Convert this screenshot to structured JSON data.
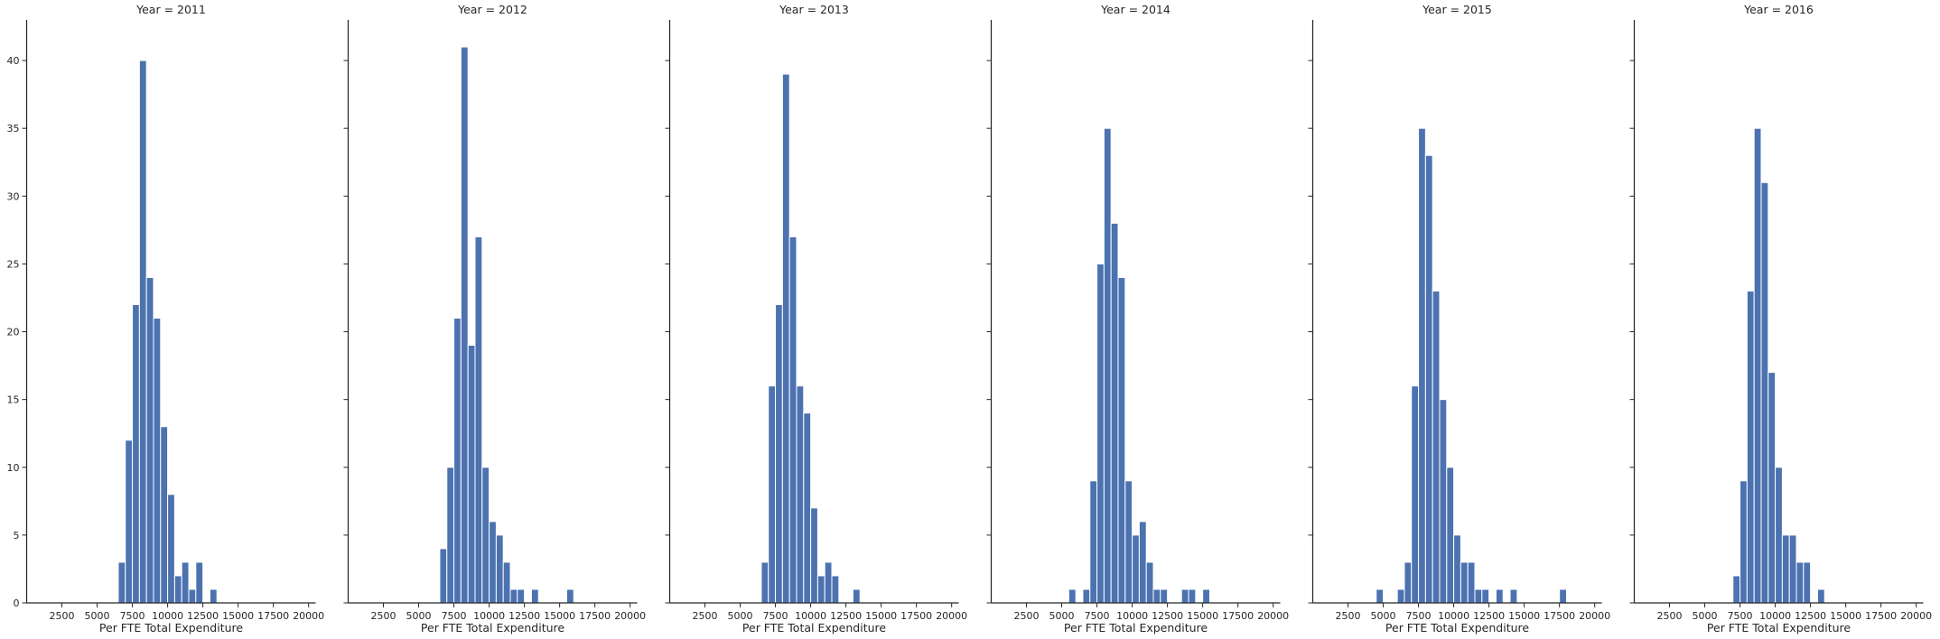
{
  "chart_data": [
    {
      "type": "bar",
      "title": "Year = 2011",
      "xlabel": "Per FTE Total Expenditure",
      "ylabel": "",
      "xlim": [
        0,
        20500
      ],
      "ylim": [
        0,
        43
      ],
      "xticks": [
        2500,
        5000,
        7500,
        10000,
        12500,
        15000,
        17500,
        20000
      ],
      "yticks": [
        0,
        5,
        10,
        15,
        20,
        25,
        30,
        35,
        40
      ],
      "bin_width": 500,
      "bins": [
        {
          "x": 6750,
          "count": 3
        },
        {
          "x": 7250,
          "count": 12
        },
        {
          "x": 7750,
          "count": 22
        },
        {
          "x": 8250,
          "count": 40
        },
        {
          "x": 8750,
          "count": 24
        },
        {
          "x": 9250,
          "count": 21
        },
        {
          "x": 9750,
          "count": 13
        },
        {
          "x": 10250,
          "count": 8
        },
        {
          "x": 10750,
          "count": 2
        },
        {
          "x": 11250,
          "count": 3
        },
        {
          "x": 11750,
          "count": 1
        },
        {
          "x": 12250,
          "count": 3
        },
        {
          "x": 13250,
          "count": 1
        }
      ]
    },
    {
      "type": "bar",
      "title": "Year = 2012",
      "xlabel": "Per FTE Total Expenditure",
      "ylabel": "",
      "xlim": [
        0,
        20500
      ],
      "ylim": [
        0,
        43
      ],
      "xticks": [
        2500,
        5000,
        7500,
        10000,
        12500,
        15000,
        17500,
        20000
      ],
      "yticks": [
        0,
        5,
        10,
        15,
        20,
        25,
        30,
        35,
        40
      ],
      "bin_width": 500,
      "bins": [
        {
          "x": 6750,
          "count": 4
        },
        {
          "x": 7250,
          "count": 10
        },
        {
          "x": 7750,
          "count": 21
        },
        {
          "x": 8250,
          "count": 41
        },
        {
          "x": 8750,
          "count": 19
        },
        {
          "x": 9250,
          "count": 27
        },
        {
          "x": 9750,
          "count": 10
        },
        {
          "x": 10250,
          "count": 6
        },
        {
          "x": 10750,
          "count": 5
        },
        {
          "x": 11250,
          "count": 3
        },
        {
          "x": 11750,
          "count": 1
        },
        {
          "x": 12250,
          "count": 1
        },
        {
          "x": 13250,
          "count": 1
        },
        {
          "x": 15750,
          "count": 1
        }
      ]
    },
    {
      "type": "bar",
      "title": "Year = 2013",
      "xlabel": "Per FTE Total Expenditure",
      "ylabel": "",
      "xlim": [
        0,
        20500
      ],
      "ylim": [
        0,
        43
      ],
      "xticks": [
        2500,
        5000,
        7500,
        10000,
        12500,
        15000,
        17500,
        20000
      ],
      "yticks": [
        0,
        5,
        10,
        15,
        20,
        25,
        30,
        35,
        40
      ],
      "bin_width": 500,
      "bins": [
        {
          "x": 6750,
          "count": 3
        },
        {
          "x": 7250,
          "count": 16
        },
        {
          "x": 7750,
          "count": 22
        },
        {
          "x": 8250,
          "count": 39
        },
        {
          "x": 8750,
          "count": 27
        },
        {
          "x": 9250,
          "count": 16
        },
        {
          "x": 9750,
          "count": 14
        },
        {
          "x": 10250,
          "count": 7
        },
        {
          "x": 10750,
          "count": 2
        },
        {
          "x": 11250,
          "count": 3
        },
        {
          "x": 11750,
          "count": 2
        },
        {
          "x": 13250,
          "count": 1
        }
      ]
    },
    {
      "type": "bar",
      "title": "Year = 2014",
      "xlabel": "Per FTE Total Expenditure",
      "ylabel": "",
      "xlim": [
        0,
        20500
      ],
      "ylim": [
        0,
        43
      ],
      "xticks": [
        2500,
        5000,
        7500,
        10000,
        12500,
        15000,
        17500,
        20000
      ],
      "yticks": [
        0,
        5,
        10,
        15,
        20,
        25,
        30,
        35,
        40
      ],
      "bin_width": 500,
      "bins": [
        {
          "x": 5750,
          "count": 1
        },
        {
          "x": 6750,
          "count": 1
        },
        {
          "x": 7250,
          "count": 9
        },
        {
          "x": 7750,
          "count": 25
        },
        {
          "x": 8250,
          "count": 35
        },
        {
          "x": 8750,
          "count": 28
        },
        {
          "x": 9250,
          "count": 24
        },
        {
          "x": 9750,
          "count": 9
        },
        {
          "x": 10250,
          "count": 5
        },
        {
          "x": 10750,
          "count": 6
        },
        {
          "x": 11250,
          "count": 3
        },
        {
          "x": 11750,
          "count": 1
        },
        {
          "x": 12250,
          "count": 1
        },
        {
          "x": 13750,
          "count": 1
        },
        {
          "x": 14250,
          "count": 1
        },
        {
          "x": 15250,
          "count": 1
        }
      ]
    },
    {
      "type": "bar",
      "title": "Year = 2015",
      "xlabel": "Per FTE Total Expenditure",
      "ylabel": "",
      "xlim": [
        0,
        20500
      ],
      "ylim": [
        0,
        43
      ],
      "xticks": [
        2500,
        5000,
        7500,
        10000,
        12500,
        15000,
        17500,
        20000
      ],
      "yticks": [
        0,
        5,
        10,
        15,
        20,
        25,
        30,
        35,
        40
      ],
      "bin_width": 500,
      "bins": [
        {
          "x": 4750,
          "count": 1
        },
        {
          "x": 6250,
          "count": 1
        },
        {
          "x": 6750,
          "count": 3
        },
        {
          "x": 7250,
          "count": 16
        },
        {
          "x": 7750,
          "count": 35
        },
        {
          "x": 8250,
          "count": 33
        },
        {
          "x": 8750,
          "count": 23
        },
        {
          "x": 9250,
          "count": 15
        },
        {
          "x": 9750,
          "count": 10
        },
        {
          "x": 10250,
          "count": 5
        },
        {
          "x": 10750,
          "count": 3
        },
        {
          "x": 11250,
          "count": 3
        },
        {
          "x": 11750,
          "count": 1
        },
        {
          "x": 12250,
          "count": 1
        },
        {
          "x": 13250,
          "count": 1
        },
        {
          "x": 14250,
          "count": 1
        },
        {
          "x": 17750,
          "count": 1
        }
      ]
    },
    {
      "type": "bar",
      "title": "Year = 2016",
      "xlabel": "Per FTE Total Expenditure",
      "ylabel": "",
      "xlim": [
        0,
        20500
      ],
      "ylim": [
        0,
        43
      ],
      "xticks": [
        2500,
        5000,
        7500,
        10000,
        12500,
        15000,
        17500,
        20000
      ],
      "yticks": [
        0,
        5,
        10,
        15,
        20,
        25,
        30,
        35,
        40
      ],
      "bin_width": 500,
      "bins": [
        {
          "x": 7250,
          "count": 2
        },
        {
          "x": 7750,
          "count": 9
        },
        {
          "x": 8250,
          "count": 23
        },
        {
          "x": 8750,
          "count": 35
        },
        {
          "x": 9250,
          "count": 31
        },
        {
          "x": 9750,
          "count": 17
        },
        {
          "x": 10250,
          "count": 10
        },
        {
          "x": 10750,
          "count": 5
        },
        {
          "x": 11250,
          "count": 5
        },
        {
          "x": 11750,
          "count": 3
        },
        {
          "x": 12250,
          "count": 3
        },
        {
          "x": 13250,
          "count": 1
        }
      ]
    }
  ]
}
